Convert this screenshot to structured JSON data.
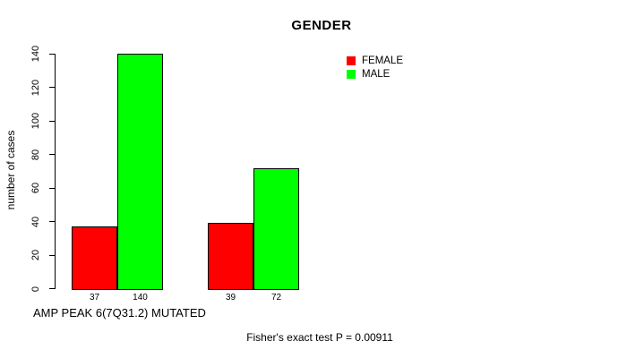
{
  "chart_data": {
    "type": "bar",
    "title": "GENDER",
    "ylabel": "number of cases",
    "xlabel": "AMP PEAK 6(7Q31.2) MUTATED",
    "annotation": "Fisher's exact test P = 0.00911",
    "series": [
      {
        "name": "FEMALE",
        "color": "#FF0000",
        "values": [
          37,
          39
        ]
      },
      {
        "name": "MALE",
        "color": "#00FF00",
        "values": [
          140,
          72
        ]
      }
    ],
    "yticks": [
      0,
      20,
      40,
      60,
      80,
      100,
      120,
      140
    ],
    "ylim": [
      0,
      140
    ],
    "grid": false,
    "legend_position": "top-right",
    "value_labels_under_bars": true,
    "axis_color": "#000000",
    "text_color": "#000000",
    "background": "#FFFFFF"
  }
}
